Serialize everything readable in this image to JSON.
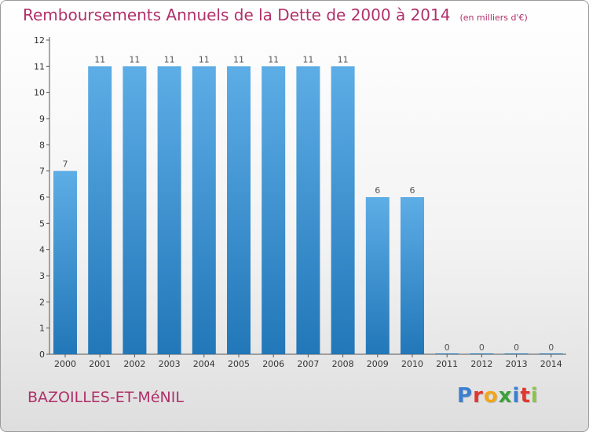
{
  "chart_data": {
    "type": "bar",
    "title": "Remboursements Annuels de la Dette de 2000 à 2014",
    "subtitle": "(en milliers d'€)",
    "categories": [
      "2000",
      "2001",
      "2002",
      "2003",
      "2004",
      "2005",
      "2006",
      "2007",
      "2008",
      "2009",
      "2010",
      "2011",
      "2012",
      "2013",
      "2014"
    ],
    "values": [
      7,
      11,
      11,
      11,
      11,
      11,
      11,
      11,
      11,
      6,
      6,
      0,
      0,
      0,
      0
    ],
    "data_labels": [
      "7",
      "11",
      "11",
      "11",
      "11",
      "11",
      "11",
      "11",
      "11",
      "6",
      "6",
      "0",
      "0",
      "0",
      "0"
    ],
    "ylim": [
      0,
      12
    ],
    "yticks": [
      "0",
      "1",
      "2",
      "3",
      "4",
      "5",
      "6",
      "7",
      "8",
      "9",
      "10",
      "11",
      "12"
    ],
    "grid": false,
    "bar_color": "#2e86c8",
    "title_color": "#b0306a"
  },
  "footer": {
    "commune": "BAZOILLES-ET-MéNIL",
    "brand_letters": [
      {
        "char": "P",
        "color": "#3a7fd0"
      },
      {
        "char": "r",
        "color": "#e0382f"
      },
      {
        "char": "o",
        "color": "#f2a61a"
      },
      {
        "char": "x",
        "color": "#3aa13a"
      },
      {
        "char": "i",
        "color": "#3a7fd0"
      },
      {
        "char": "t",
        "color": "#e0382f"
      },
      {
        "char": "i",
        "color": "#8bc34a"
      }
    ]
  }
}
